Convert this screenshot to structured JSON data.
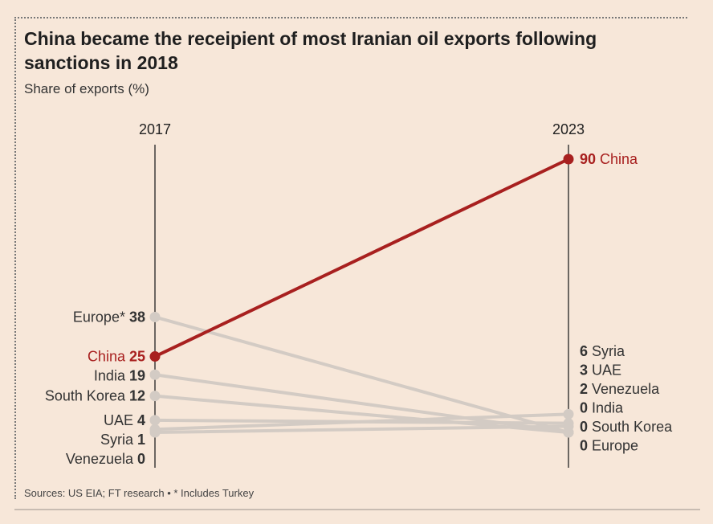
{
  "title": "China became the receipient of most Iranian oil exports following sanctions in 2018",
  "subtitle": "Share of exports (%)",
  "source": "Sources: US EIA; FT research • * Includes Turkey",
  "colors": {
    "highlight": "#a8201f",
    "muted": "#d3cbc4",
    "background": "#f7e7d9",
    "text": "#222222"
  },
  "chart_data": {
    "type": "slope",
    "title": "China became the receipient of most Iranian oil exports following sanctions in 2018",
    "ylabel": "Share of exports (%)",
    "x": [
      "2017",
      "2023"
    ],
    "ylim": [
      0,
      90
    ],
    "highlight": "China",
    "series": [
      {
        "name": "Europe",
        "label_2017": "Europe*",
        "values": [
          38,
          0
        ]
      },
      {
        "name": "China",
        "label_2017": "China",
        "values": [
          25,
          90
        ]
      },
      {
        "name": "India",
        "label_2017": "India",
        "values": [
          19,
          0
        ]
      },
      {
        "name": "South Korea",
        "label_2017": "South Korea",
        "values": [
          12,
          0
        ]
      },
      {
        "name": "UAE",
        "label_2017": "UAE",
        "values": [
          4,
          3
        ]
      },
      {
        "name": "Syria",
        "label_2017": "Syria",
        "values": [
          1,
          6
        ]
      },
      {
        "name": "Venezuela",
        "label_2017": "Venezuela",
        "values": [
          0,
          2
        ]
      }
    ],
    "right_label_order": [
      "China",
      "Syria",
      "UAE",
      "Venezuela",
      "India",
      "South Korea",
      "Europe"
    ]
  }
}
